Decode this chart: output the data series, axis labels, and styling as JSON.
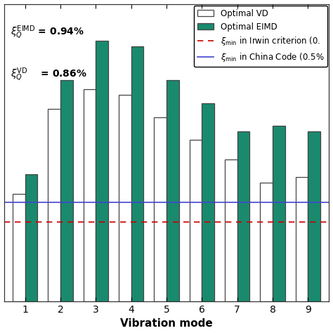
{
  "vd_values": [
    0.38,
    0.68,
    0.75,
    0.73,
    0.65,
    0.57,
    0.5,
    0.42,
    0.44
  ],
  "eimd_values": [
    0.45,
    0.78,
    0.92,
    0.9,
    0.78,
    0.7,
    0.6,
    0.62,
    0.6
  ],
  "modes": [
    1,
    2,
    3,
    4,
    5,
    6,
    7,
    8,
    9
  ],
  "mode_labels": [
    "1",
    "2",
    "3",
    "4",
    "5",
    "6",
    "7",
    "8",
    "9"
  ],
  "bar_color_vd": "#ffffff",
  "bar_color_eimd": "#1a8a6e",
  "bar_edge_color": "#444444",
  "irwin_line_y": 0.28,
  "china_code_line_y": 0.35,
  "irwin_color": "#cc0000",
  "china_color": "#4444cc",
  "xlabel": "Vibration mode",
  "ylim": [
    0.0,
    1.05
  ],
  "xlim": [
    0.4,
    9.6
  ],
  "bar_width": 0.35,
  "legend_fontsize": 8.5,
  "axis_fontsize": 11
}
